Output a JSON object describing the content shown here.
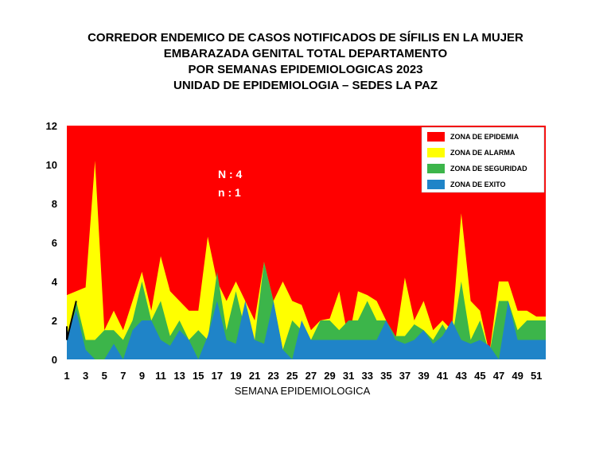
{
  "title_lines": [
    "CORREDOR  ENDEMICO  DE CASOS NOTIFICADOS  DE SÍFILIS  EN LA MUJER",
    "EMBARAZADA GENITAL  TOTAL DEPARTAMENTO",
    "POR SEMANAS  EPIDEMIOLOGICAS  2023",
    "UNIDAD  DE EPIDEMIOLOGIA  – SEDES LA PAZ"
  ],
  "annotations": [
    "N : 4",
    "n : 1"
  ],
  "chart_data": {
    "type": "area",
    "title": "CORREDOR  ENDEMICO  DE CASOS NOTIFICADOS  DE SÍFILIS  EN LA MUJER EMBARAZADA GENITAL  TOTAL DEPARTAMENTO POR SEMANAS  EPIDEMIOLOGICAS  2023",
    "xlabel": "SEMANA EPIDEMIOLOGICA",
    "ylabel": "",
    "ylim": [
      0,
      12
    ],
    "xlim": [
      1,
      52
    ],
    "yticks": [
      0,
      2,
      4,
      6,
      8,
      10,
      12
    ],
    "xticks": [
      1,
      3,
      5,
      7,
      9,
      11,
      13,
      15,
      17,
      19,
      21,
      23,
      25,
      27,
      29,
      31,
      33,
      35,
      37,
      39,
      41,
      43,
      45,
      47,
      49,
      51
    ],
    "x": [
      1,
      2,
      3,
      4,
      5,
      6,
      7,
      8,
      9,
      10,
      11,
      12,
      13,
      14,
      15,
      16,
      17,
      18,
      19,
      20,
      21,
      22,
      23,
      24,
      25,
      26,
      27,
      28,
      29,
      30,
      31,
      32,
      33,
      34,
      35,
      36,
      37,
      38,
      39,
      40,
      41,
      42,
      43,
      44,
      45,
      46,
      47,
      48,
      49,
      50,
      51,
      52
    ],
    "legend_position": "top-right",
    "grid": false,
    "series": [
      {
        "name": "ZONA DE EPIDEMIA",
        "color": "#ff0000",
        "values": [
          12,
          12,
          12,
          12,
          12,
          12,
          12,
          12,
          12,
          12,
          12,
          12,
          12,
          12,
          12,
          12,
          12,
          12,
          12,
          12,
          12,
          12,
          12,
          12,
          12,
          12,
          12,
          12,
          12,
          12,
          12,
          12,
          12,
          12,
          12,
          12,
          12,
          12,
          12,
          12,
          12,
          12,
          12,
          12,
          12,
          12,
          12,
          12,
          12,
          12,
          12,
          12
        ]
      },
      {
        "name": "ZONA DE ALARMA",
        "color": "#ffff00",
        "values": [
          3.3,
          3.5,
          3.7,
          10.2,
          1.5,
          2.5,
          1.5,
          3,
          4.5,
          2.5,
          5.3,
          3.5,
          3,
          2.5,
          2.5,
          6.3,
          4,
          3,
          4,
          3,
          2,
          5,
          3,
          4,
          3,
          2.8,
          1.5,
          2,
          2.1,
          3.5,
          1,
          3.5,
          3.3,
          3,
          2,
          1,
          4.2,
          2,
          3,
          1.5,
          2,
          1.5,
          7.5,
          3,
          2.5,
          0.3,
          4,
          4,
          2.5,
          2.5,
          2.2,
          2.2
        ]
      },
      {
        "name": "ZONA DE  SEGURIDAD",
        "color": "#3cb54a",
        "values": [
          1,
          3,
          1,
          1,
          1.5,
          1.5,
          1,
          2,
          4,
          2,
          3,
          1.2,
          2,
          1,
          1.5,
          1,
          4.5,
          1.5,
          3.5,
          1.5,
          1,
          5,
          3,
          0.5,
          2,
          1.5,
          1,
          2,
          2,
          1.5,
          2,
          2,
          3,
          2,
          2,
          1.2,
          1.2,
          1.8,
          1.5,
          1,
          1.8,
          1,
          4,
          1,
          2,
          0.3,
          3,
          3,
          1.5,
          2,
          2,
          2
        ]
      },
      {
        "name": "ZONA DE  EXITO",
        "color": "#1f84c8",
        "values": [
          1.3,
          2.5,
          0.5,
          0,
          0,
          0.8,
          0,
          1.5,
          2,
          2,
          1,
          0.7,
          1.5,
          1,
          0,
          1.2,
          3,
          1,
          0.8,
          3,
          1,
          0.8,
          3,
          0.5,
          0,
          2,
          1,
          1,
          1,
          1,
          1,
          1,
          1,
          1,
          2,
          1,
          0.8,
          1,
          1.5,
          0.8,
          1.2,
          2,
          1,
          0.8,
          1,
          0.7,
          0,
          3,
          1,
          1,
          1,
          1
        ]
      }
    ],
    "observed": {
      "name": "",
      "color": "#000000",
      "points": [
        [
          1,
          1.7
        ],
        [
          1,
          1
        ],
        [
          2,
          3
        ]
      ]
    }
  }
}
